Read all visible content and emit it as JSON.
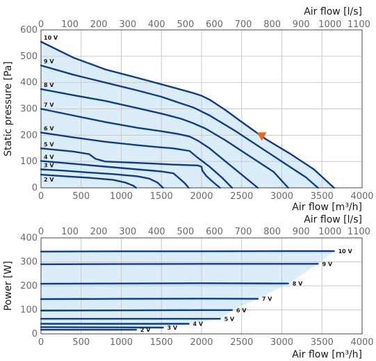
{
  "chart_data": [
    {
      "type": "line",
      "ylabel": "Static pressure [Pa]",
      "xlabel_bottom": "Air flow [m³/h]",
      "xlabel_top": "Air flow [l/s]",
      "x_unit": "m³/h",
      "xlim": [
        0,
        4000
      ],
      "ylim": [
        0,
        600
      ],
      "x_ticks": [
        0,
        500,
        1000,
        1500,
        2000,
        2500,
        3000,
        3500,
        4000
      ],
      "y_ticks": [
        0,
        100,
        200,
        300,
        400,
        500,
        600
      ],
      "x_top_ticks": [
        0,
        100,
        200,
        300,
        400,
        500,
        600,
        700,
        800,
        900,
        1000,
        1100
      ],
      "grid": true,
      "fill_color": "#dcedfa",
      "curve_color": "#0d3b8e",
      "series": [
        {
          "name": "10 V",
          "points": [
            [
              0,
              555
            ],
            [
              400,
              495
            ],
            [
              800,
              450
            ],
            [
              1200,
              418
            ],
            [
              1600,
              385
            ],
            [
              1900,
              360
            ],
            [
              2000,
              350
            ],
            [
              2100,
              335
            ],
            [
              2300,
              295
            ],
            [
              2500,
              250
            ],
            [
              2800,
              185
            ],
            [
              3100,
              130
            ],
            [
              3400,
              70
            ],
            [
              3650,
              0
            ]
          ]
        },
        {
          "name": "9 V",
          "points": [
            [
              0,
              465
            ],
            [
              400,
              430
            ],
            [
              800,
              400
            ],
            [
              1200,
              370
            ],
            [
              1500,
              346
            ],
            [
              1750,
              320
            ],
            [
              1900,
              305
            ],
            [
              2100,
              275
            ],
            [
              2400,
              220
            ],
            [
              2700,
              160
            ],
            [
              3000,
              100
            ],
            [
              3300,
              40
            ],
            [
              3450,
              0
            ]
          ]
        },
        {
          "name": "8 V",
          "points": [
            [
              0,
              375
            ],
            [
              400,
              352
            ],
            [
              800,
              330
            ],
            [
              1200,
              303
            ],
            [
              1500,
              282
            ],
            [
              1750,
              262
            ],
            [
              1900,
              245
            ],
            [
              2050,
              225
            ],
            [
              2300,
              180
            ],
            [
              2600,
              120
            ],
            [
              2900,
              60
            ],
            [
              3080,
              0
            ]
          ]
        },
        {
          "name": "7 V",
          "points": [
            [
              0,
              300
            ],
            [
              400,
              275
            ],
            [
              800,
              250
            ],
            [
              1200,
              228
            ],
            [
              1500,
              215
            ],
            [
              1700,
              205
            ],
            [
              1850,
              195
            ],
            [
              1950,
              180
            ],
            [
              2100,
              150
            ],
            [
              2300,
              100
            ],
            [
              2500,
              50
            ],
            [
              2700,
              0
            ]
          ]
        },
        {
          "name": "6 V",
          "points": [
            [
              0,
              210
            ],
            [
              400,
              192
            ],
            [
              800,
              175
            ],
            [
              1200,
              162
            ],
            [
              1450,
              155
            ],
            [
              1650,
              150
            ],
            [
              1850,
              140
            ],
            [
              1950,
              115
            ],
            [
              2100,
              80
            ],
            [
              2250,
              40
            ],
            [
              2380,
              0
            ]
          ]
        },
        {
          "name": "5 V",
          "points": [
            [
              0,
              150
            ],
            [
              400,
              138
            ],
            [
              600,
              128
            ],
            [
              680,
              110
            ],
            [
              800,
              100
            ],
            [
              1100,
              96
            ],
            [
              1400,
              92
            ],
            [
              1650,
              88
            ],
            [
              1950,
              85
            ],
            [
              2000,
              80
            ],
            [
              2010,
              65
            ],
            [
              2060,
              45
            ],
            [
              2150,
              20
            ],
            [
              2230,
              0
            ]
          ]
        },
        {
          "name": "4 V",
          "points": [
            [
              0,
              102
            ],
            [
              300,
              94
            ],
            [
              600,
              86
            ],
            [
              900,
              78
            ],
            [
              1200,
              70
            ],
            [
              1500,
              62
            ],
            [
              1650,
              55
            ],
            [
              1700,
              42
            ],
            [
              1790,
              18
            ],
            [
              1840,
              0
            ]
          ]
        },
        {
          "name": "3 V",
          "points": [
            [
              0,
              70
            ],
            [
              300,
              65
            ],
            [
              600,
              58
            ],
            [
              900,
              52
            ],
            [
              1200,
              44
            ],
            [
              1350,
              35
            ],
            [
              1450,
              20
            ],
            [
              1520,
              0
            ]
          ]
        },
        {
          "name": "2 V",
          "points": [
            [
              0,
              50
            ],
            [
              300,
              44
            ],
            [
              600,
              38
            ],
            [
              900,
              30
            ],
            [
              1050,
              20
            ],
            [
              1150,
              8
            ],
            [
              1185,
              0
            ]
          ]
        }
      ],
      "marker": {
        "x": 2750,
        "y": 195,
        "color": "#f26522",
        "shape": "down-triangle"
      }
    },
    {
      "type": "line",
      "ylabel": "Power [W]",
      "xlabel_bottom": "Air flow [m³/h]",
      "xlabel_top": "Air flow [l/s]",
      "x_unit": "m³/h",
      "xlim": [
        0,
        4000
      ],
      "ylim": [
        0,
        400
      ],
      "x_ticks": [
        0,
        500,
        1000,
        1500,
        2000,
        2500,
        3000,
        3500,
        4000
      ],
      "y_ticks": [
        0,
        100,
        200,
        300,
        400
      ],
      "x_top_ticks": [
        0,
        100,
        200,
        300,
        400,
        500,
        600,
        700,
        800,
        900,
        1000,
        1100
      ],
      "grid": true,
      "fill_color": "#dcedfa",
      "curve_color": "#0d3b8e",
      "series": [
        {
          "name": "10 V",
          "x_end": 3650,
          "points": [
            [
              0,
              343
            ],
            [
              1000,
              344
            ],
            [
              2000,
              344
            ],
            [
              3000,
              345
            ],
            [
              3650,
              345
            ]
          ]
        },
        {
          "name": "9 V",
          "x_end": 3450,
          "points": [
            [
              0,
              290
            ],
            [
              1000,
              291
            ],
            [
              2000,
              292
            ],
            [
              3000,
              292
            ],
            [
              3450,
              292
            ]
          ]
        },
        {
          "name": "8 V",
          "x_end": 3080,
          "points": [
            [
              0,
              209
            ],
            [
              1000,
              210
            ],
            [
              2000,
              211
            ],
            [
              3080,
              210
            ]
          ]
        },
        {
          "name": "7 V",
          "x_end": 2700,
          "points": [
            [
              0,
              145
            ],
            [
              1000,
              146
            ],
            [
              2000,
              147
            ],
            [
              2700,
              146
            ]
          ]
        },
        {
          "name": "6 V",
          "x_end": 2380,
          "points": [
            [
              0,
              97
            ],
            [
              1000,
              98
            ],
            [
              2000,
              99
            ],
            [
              2380,
              99
            ]
          ]
        },
        {
          "name": "5 V",
          "x_end": 2230,
          "points": [
            [
              0,
              63
            ],
            [
              1000,
              63
            ],
            [
              2000,
              63
            ],
            [
              2230,
              63
            ]
          ]
        },
        {
          "name": "4 V",
          "x_end": 1840,
          "points": [
            [
              0,
              42
            ],
            [
              1000,
              42
            ],
            [
              1840,
              42
            ]
          ]
        },
        {
          "name": "3 V",
          "x_end": 1520,
          "points": [
            [
              0,
              28
            ],
            [
              1000,
              27
            ],
            [
              1520,
              26
            ]
          ]
        },
        {
          "name": "2 V",
          "x_end": 1185,
          "points": [
            [
              0,
              17
            ],
            [
              800,
              17
            ],
            [
              1185,
              17
            ]
          ]
        }
      ]
    }
  ]
}
